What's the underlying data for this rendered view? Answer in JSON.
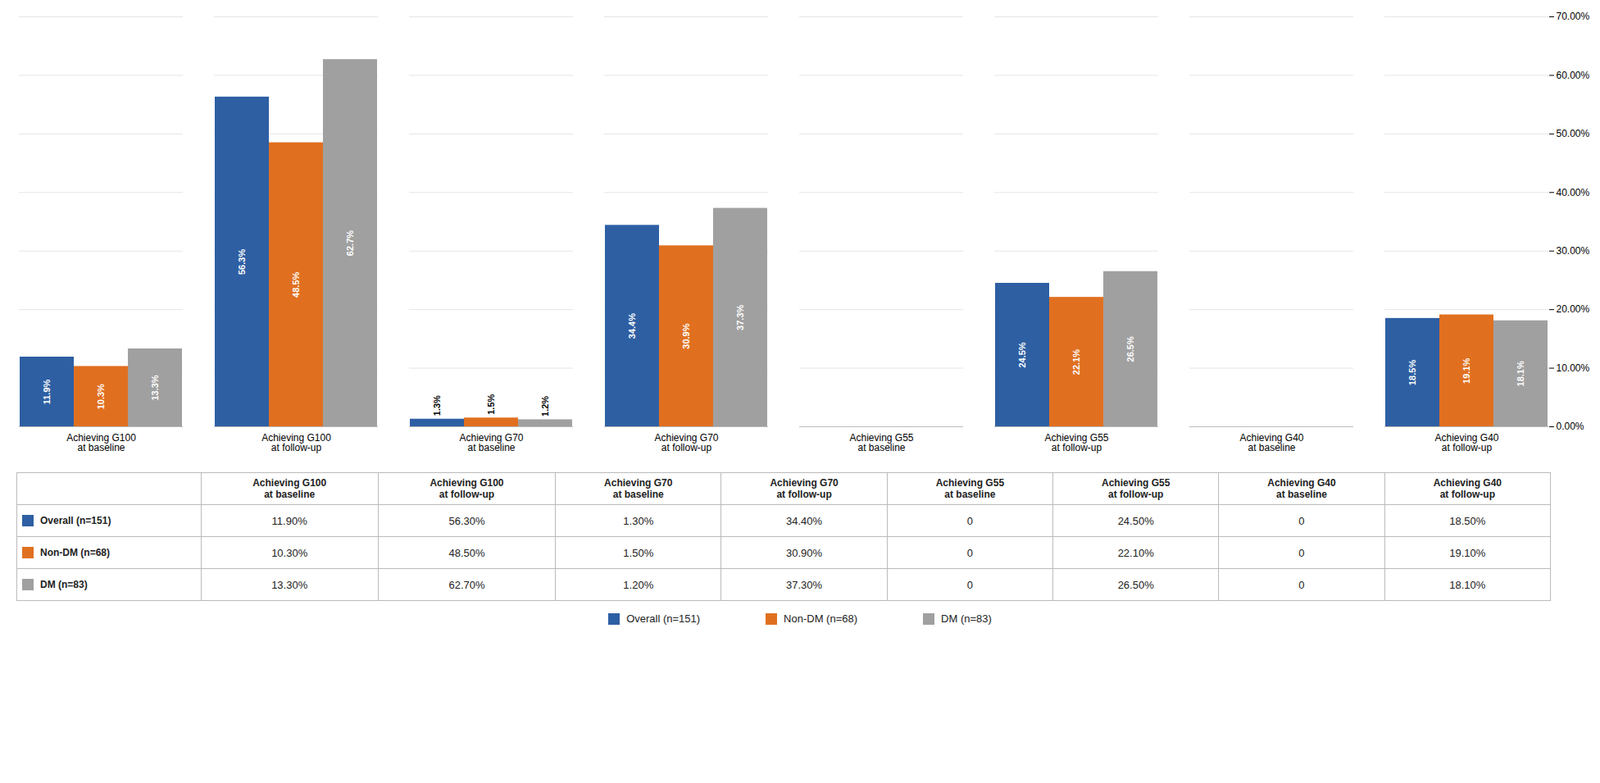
{
  "chart_data": {
    "type": "bar",
    "categories": [
      "Achieving G100\nat baseline",
      "Achieving G100\nat follow-up",
      "Achieving G70\nat baseline",
      "Achieving G70\nat follow-up",
      "Achieving G55\nat baseline",
      "Achieving G55\nat follow-up",
      "Achieving G40\nat baseline",
      "Achieving G40\nat follow-up"
    ],
    "series": [
      {
        "name": "Overall (n=151)",
        "color": "#2E5FA3",
        "values": [
          11.9,
          56.3,
          1.3,
          34.4,
          0,
          24.5,
          0,
          18.5
        ],
        "value_labels": [
          "11.9%",
          "56.3%",
          "1.3%",
          "34.4%",
          null,
          "24.5%",
          null,
          "18.5%"
        ]
      },
      {
        "name": "Non-DM (n=68)",
        "color": "#E07020",
        "values": [
          10.3,
          48.5,
          1.5,
          30.9,
          0,
          22.1,
          0,
          19.1
        ],
        "value_labels": [
          "10.3%",
          "48.5%",
          "1.5%",
          "30.9%",
          null,
          "22.1%",
          null,
          "19.1%"
        ]
      },
      {
        "name": "DM (n=83)",
        "color": "#A0A0A0",
        "values": [
          13.3,
          62.7,
          1.2,
          37.3,
          0,
          26.5,
          0,
          18.1
        ],
        "value_labels": [
          "13.3%",
          "62.7%",
          "1.2%",
          "37.3%",
          null,
          "26.5%",
          null,
          "18.1%"
        ]
      }
    ],
    "ylim": [
      0,
      70
    ],
    "yticks": [
      {
        "value": 0,
        "label": "0.00%"
      },
      {
        "value": 10,
        "label": "10.00%"
      },
      {
        "value": 20,
        "label": "20.00%"
      },
      {
        "value": 30,
        "label": "30.00%"
      },
      {
        "value": 40,
        "label": "40.00%"
      },
      {
        "value": 50,
        "label": "50.00%"
      },
      {
        "value": 60,
        "label": "60.00%"
      },
      {
        "value": 70,
        "label": "70.00%"
      }
    ],
    "grid": true,
    "data_labels": true,
    "legend": "bottom",
    "table": {
      "rows": [
        {
          "name": "Overall (n=151)",
          "cells": [
            "11.90%",
            "56.30%",
            "1.30%",
            "34.40%",
            "0",
            "24.50%",
            "0",
            "18.50%"
          ]
        },
        {
          "name": "Non-DM (n=68)",
          "cells": [
            "10.30%",
            "48.50%",
            "1.50%",
            "30.90%",
            "0",
            "22.10%",
            "0",
            "19.10%"
          ]
        },
        {
          "name": "DM (n=83)",
          "cells": [
            "13.30%",
            "62.70%",
            "1.20%",
            "37.30%",
            "0",
            "26.50%",
            "0",
            "18.10%"
          ]
        }
      ]
    }
  }
}
